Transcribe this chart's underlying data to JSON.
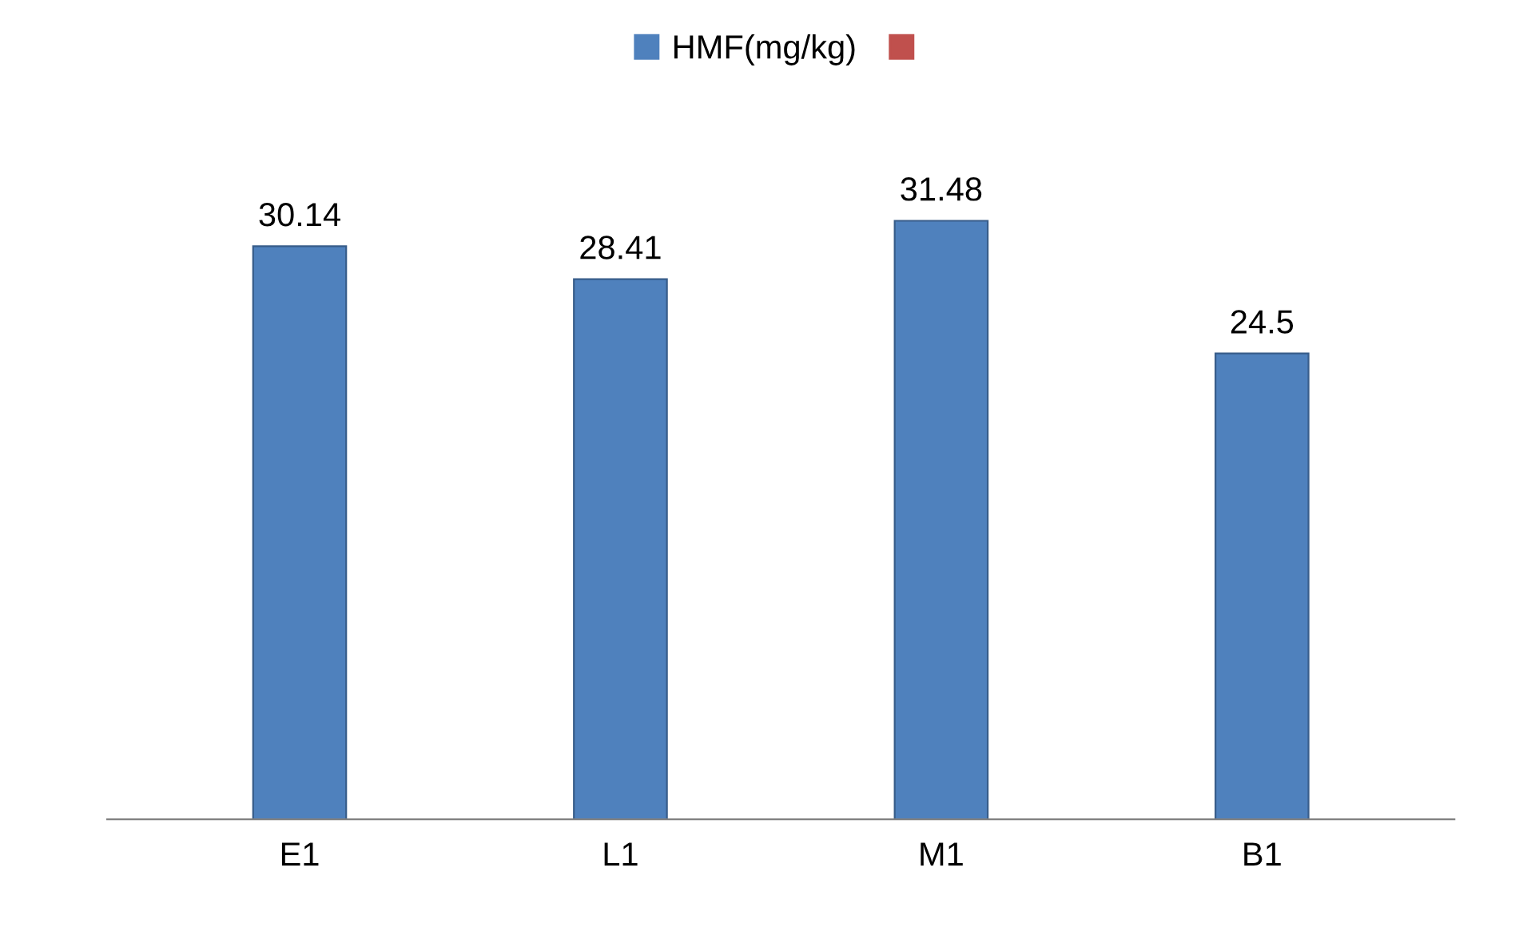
{
  "chart_data": {
    "type": "bar",
    "categories": [
      "E1",
      "L1",
      "M1",
      "B1"
    ],
    "series": [
      {
        "name": "HMF(mg/kg)",
        "color": "#4f81bd",
        "values": [
          30.14,
          28.41,
          31.48,
          24.5
        ]
      },
      {
        "color": "#c0504d",
        "values": [
          null,
          null,
          null,
          null
        ]
      }
    ],
    "data_labels": true,
    "legend": "top",
    "grid": false
  }
}
